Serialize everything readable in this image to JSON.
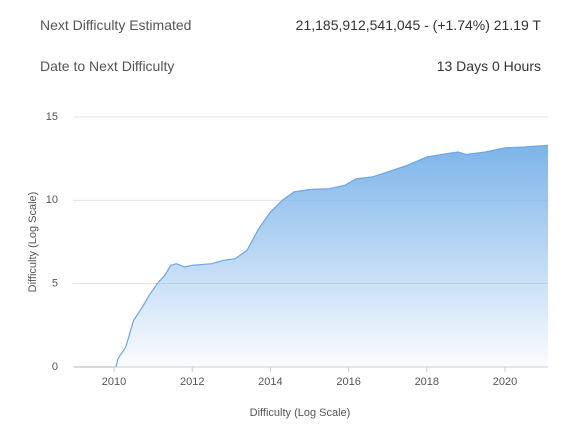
{
  "info": [
    {
      "label": "Next Difficulty Estimated",
      "value": "21,185,912,541,045 - (+1.74%) 21.19 T"
    },
    {
      "label": "Date to Next Difficulty",
      "value": "13 Days 0 Hours"
    }
  ],
  "chart_data": {
    "type": "area",
    "x_label": "Difficulty (Log Scale)",
    "y_label": "Difficulty (Log Scale)",
    "log_scale_label_only": true,
    "color": "#6aa8e6",
    "grid": true,
    "x": [
      2009.0,
      2010.05,
      2010.1,
      2010.3,
      2010.5,
      2010.7,
      2010.9,
      2011.1,
      2011.3,
      2011.45,
      2011.6,
      2011.8,
      2012.0,
      2012.5,
      2012.8,
      2013.1,
      2013.4,
      2013.7,
      2014.0,
      2014.3,
      2014.6,
      2015.0,
      2015.5,
      2015.9,
      2016.2,
      2016.6,
      2017.0,
      2017.5,
      2018.0,
      2018.5,
      2018.8,
      2019.0,
      2019.5,
      2020.0,
      2020.5,
      2021.1
    ],
    "values": [
      0,
      0,
      0.5,
      1.2,
      2.8,
      3.5,
      4.3,
      5,
      5.5,
      6.1,
      6.2,
      6.0,
      6.1,
      6.2,
      6.4,
      6.5,
      7.0,
      8.3,
      9.3,
      10.0,
      10.5,
      10.65,
      10.7,
      10.9,
      11.3,
      11.4,
      11.7,
      12.1,
      12.6,
      12.8,
      12.9,
      12.75,
      12.9,
      13.15,
      13.2,
      13.3
    ],
    "xlim": [
      2008.95,
      2021.1
    ],
    "ylim": [
      0,
      15
    ],
    "xticks": [
      2010,
      2012,
      2014,
      2016,
      2018,
      2020
    ],
    "yticks": [
      0,
      5,
      10,
      15
    ]
  }
}
